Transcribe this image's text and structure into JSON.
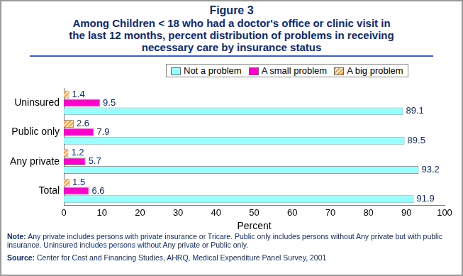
{
  "chart_data": {
    "type": "bar",
    "orientation": "horizontal",
    "title": "Figure 3",
    "subtitle": [
      "Among Children < 18 who had a doctor's office or clinic visit in",
      "the last 12 months, percent distribution of problems in receiving",
      "necessary care by insurance status"
    ],
    "categories": [
      "Uninsured",
      "Public only",
      "Any private",
      "Total"
    ],
    "series": [
      {
        "name": "Not a problem",
        "color": "#99ffff",
        "values": [
          89.1,
          89.5,
          93.2,
          91.9
        ]
      },
      {
        "name": "A small problem",
        "color": "#ff00cc",
        "values": [
          9.5,
          7.9,
          5.7,
          6.6
        ]
      },
      {
        "name": "A big problem",
        "color": "#ff9933",
        "values": [
          1.4,
          2.6,
          1.2,
          1.5
        ]
      }
    ],
    "xlabel": "Percent",
    "xlim": [
      0,
      100
    ],
    "xticks": [
      0,
      10,
      20,
      30,
      40,
      50,
      60,
      70,
      80,
      90,
      100
    ],
    "grid": false,
    "legend": "top",
    "data_labels": true,
    "annotations": [
      "Note: Any private includes persons with private insurance or Tricare. Public only includes persons without Any private but with public insurance. Uninsured includes persons without Any private or Public only.",
      "Source: Center for Cost and Financing Studies, AHRQ, Medical Expenditure Panel Survey, 2001"
    ]
  }
}
